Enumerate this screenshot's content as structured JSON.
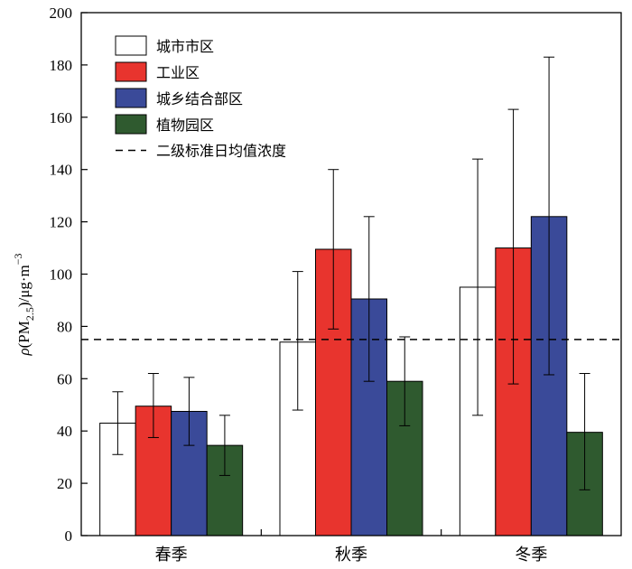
{
  "chart_data": {
    "type": "bar",
    "title": "",
    "xlabel": "",
    "ylabel": {
      "rho": "ρ",
      "open": "(PM",
      "sub": "2.5",
      "close": ")/μg·m",
      "sup": "−3"
    },
    "ylim": [
      0,
      200
    ],
    "yticks": [
      0,
      20,
      40,
      60,
      80,
      100,
      120,
      140,
      160,
      180,
      200
    ],
    "categories": [
      "春季",
      "秋季",
      "冬季"
    ],
    "series": [
      {
        "name": "城市市区",
        "color": "#ffffff",
        "values": [
          43,
          74,
          95
        ],
        "err_low": [
          31,
          48,
          46
        ],
        "err_high": [
          55,
          101,
          144
        ]
      },
      {
        "name": "工业区",
        "color": "#e8342e",
        "values": [
          49.5,
          109.5,
          110
        ],
        "err_low": [
          37.5,
          79,
          58
        ],
        "err_high": [
          62,
          140,
          163
        ]
      },
      {
        "name": "城乡结合部区",
        "color": "#3a4a99",
        "values": [
          47.5,
          90.5,
          122
        ],
        "err_low": [
          34.5,
          59,
          61.5
        ],
        "err_high": [
          60.5,
          122,
          183
        ]
      },
      {
        "name": "植物园区",
        "color": "#2f5a2f",
        "values": [
          34.5,
          59,
          39.5
        ],
        "err_low": [
          23,
          42,
          17.5
        ],
        "err_high": [
          46,
          76,
          62
        ]
      }
    ],
    "reference_line": {
      "name": "二级标准日均值浓度",
      "value": 75,
      "style": "dashed"
    },
    "legend_position": "top-left",
    "grid": false
  }
}
